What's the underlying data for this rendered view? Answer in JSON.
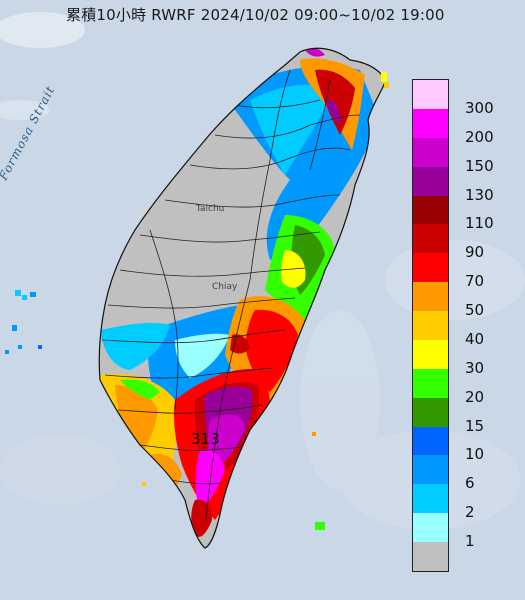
{
  "title": "累積10小時 RWRF 2024/10/02 09:00~10/02 19:00",
  "strait_label": "Formosa Strait",
  "place_labels": {
    "taichung": "Taichu",
    "chiayi": "Chiay"
  },
  "peak_value": "313",
  "legend": {
    "labels": [
      "300",
      "200",
      "150",
      "130",
      "110",
      "90",
      "70",
      "50",
      "40",
      "30",
      "20",
      "15",
      "10",
      "6",
      "2",
      "1"
    ],
    "colors": [
      "#ffc8ff",
      "#ff00ff",
      "#cc00cc",
      "#990099",
      "#990000",
      "#cc0000",
      "#ff0000",
      "#ff9900",
      "#ffcc00",
      "#ffff00",
      "#33ff00",
      "#339900",
      "#0066ff",
      "#0099ff",
      "#00ccff",
      "#99ffff",
      "#c0c0c0"
    ]
  },
  "colors": {
    "sea": "#c9d7e6",
    "land_gray": "#c0c0c0"
  }
}
